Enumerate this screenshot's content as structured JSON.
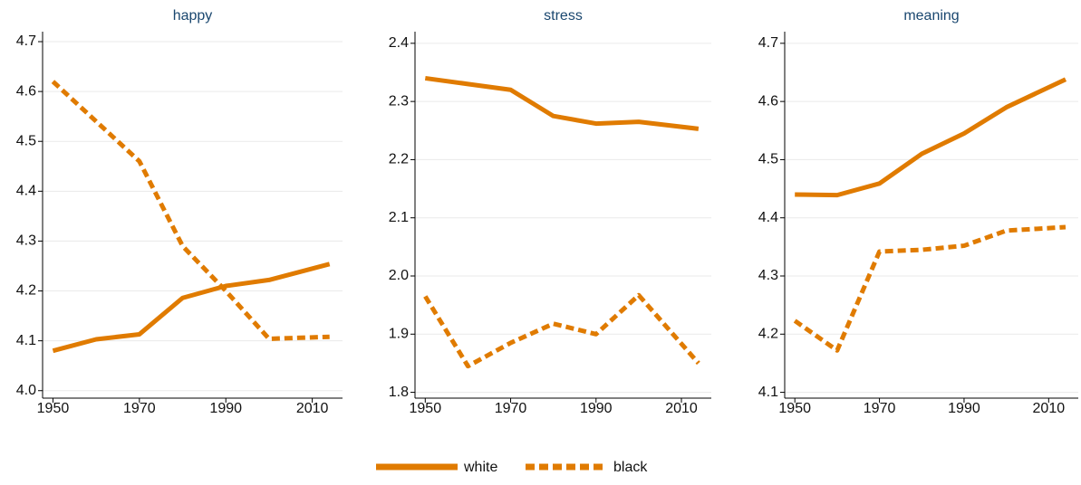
{
  "chart_data": [
    {
      "type": "line",
      "title": "happy",
      "x": [
        1950,
        1960,
        1970,
        1980,
        1990,
        2000,
        2014
      ],
      "xlim": [
        1947.6,
        2017
      ],
      "xticks": [
        1950,
        1970,
        1990,
        2010
      ],
      "ylim": [
        3.985,
        4.72
      ],
      "yticks": [
        {
          "value": 4,
          "label": "4.0"
        },
        4.1,
        4.2,
        4.3,
        4.4,
        4.5,
        4.6,
        4.7
      ],
      "grid": true,
      "series": [
        {
          "name": "white",
          "color": "#e07b00",
          "dash": false,
          "values": [
            4.08,
            4.103,
            4.113,
            4.186,
            4.21,
            4.222,
            4.254
          ]
        },
        {
          "name": "black",
          "color": "#e07b00",
          "dash": true,
          "values": [
            4.62,
            4.54,
            4.46,
            4.29,
            4.2,
            4.104,
            4.108
          ]
        }
      ]
    },
    {
      "type": "line",
      "title": "stress",
      "x": [
        1950,
        1960,
        1970,
        1980,
        1990,
        2000,
        2014
      ],
      "xlim": [
        1947.6,
        2017
      ],
      "xticks": [
        1950,
        1970,
        1990,
        2010
      ],
      "ylim": [
        1.79,
        2.42
      ],
      "yticks": [
        1.8,
        1.9,
        {
          "value": 2,
          "label": "2.0"
        },
        2.1,
        2.2,
        2.3,
        2.4
      ],
      "grid": true,
      "series": [
        {
          "color": "#e07b00",
          "dash": false,
          "values": [
            2.34,
            2.33,
            2.32,
            2.275,
            2.262,
            2.265,
            2.253
          ]
        },
        {
          "color": "#e07b00",
          "dash": true,
          "values": [
            1.965,
            1.845,
            1.885,
            1.918,
            1.9,
            1.967,
            1.85
          ]
        }
      ]
    },
    {
      "type": "line",
      "title": "meaning",
      "x": [
        1950,
        1960,
        1970,
        1980,
        1990,
        2000,
        2014
      ],
      "xlim": [
        1947.6,
        2017
      ],
      "xticks": [
        1950,
        1970,
        1990,
        2010
      ],
      "ylim": [
        4.09,
        4.72
      ],
      "yticks": [
        4.1,
        4.2,
        4.3,
        4.4,
        4.5,
        4.6,
        4.7
      ],
      "grid": true,
      "series": [
        {
          "color": "#e07b00",
          "dash": false,
          "values": [
            4.44,
            4.439,
            4.459,
            4.51,
            4.545,
            4.59,
            4.638
          ]
        },
        {
          "color": "#e07b00",
          "dash": true,
          "values": [
            4.223,
            4.172,
            4.342,
            4.345,
            4.352,
            4.378,
            4.384
          ]
        }
      ]
    }
  ]
}
